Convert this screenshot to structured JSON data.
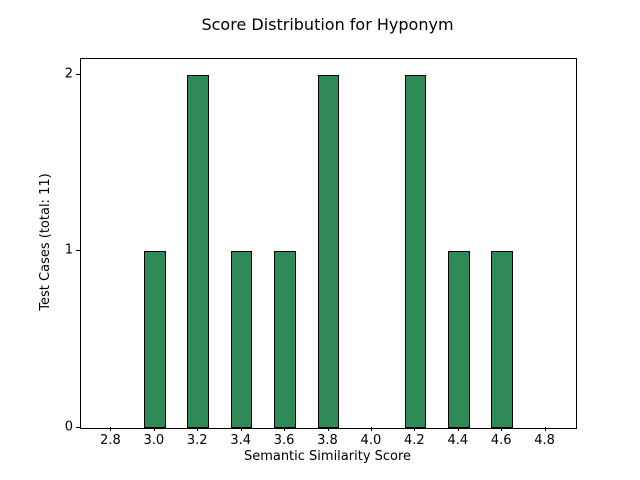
{
  "figure": {
    "background": "#ffffff"
  },
  "chart_data": {
    "type": "bar",
    "title": "Score Distribution for Hyponym",
    "xlabel": "Semantic Similarity Score",
    "ylabel": "Test Cases (total: 11)",
    "total_test_cases": 11,
    "categories": [
      3.0,
      3.2,
      3.4,
      3.6,
      3.8,
      4.2,
      4.4,
      4.6
    ],
    "values": [
      1,
      2,
      1,
      1,
      2,
      2,
      1,
      1
    ],
    "bar_width": 0.1,
    "xlim": [
      2.66,
      4.94
    ],
    "ylim": [
      0,
      2.09
    ],
    "xticks": {
      "values": [
        2.8,
        3.0,
        3.2,
        3.4,
        3.6,
        3.8,
        4.0,
        4.2,
        4.4,
        4.6,
        4.8
      ],
      "labels": [
        "2.8",
        "3.0",
        "3.2",
        "3.4",
        "3.6",
        "3.8",
        "4.0",
        "4.2",
        "4.4",
        "4.6",
        "4.8"
      ]
    },
    "yticks": {
      "values": [
        0,
        1,
        2
      ],
      "labels": [
        "0",
        "1",
        "2"
      ]
    },
    "grid": false,
    "legend_position": "none",
    "colors": {
      "bar_fill": "#2e8b57",
      "bar_edge": "#000000",
      "axis": "#000000",
      "text": "#000000"
    }
  }
}
